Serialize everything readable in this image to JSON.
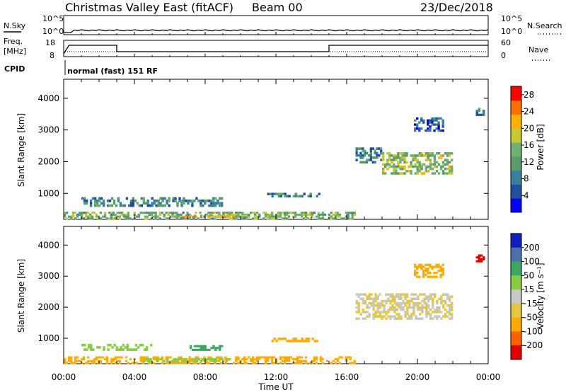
{
  "header": {
    "station": "Christmas Valley East (fitACF)",
    "beam": "Beam 00",
    "date": "23/Dec/2018"
  },
  "summary": {
    "nsky_label": "N.Sky",
    "nsky_ticks": [
      "10^5",
      "10^0"
    ],
    "nsearch_label": "N.Search",
    "nsearch_ticks": [
      "10^5",
      "10^0"
    ],
    "freq_label_line1": "Freq.",
    "freq_label_line2": "[MHz]",
    "freq_ticks": [
      "18",
      "8"
    ],
    "nave_label": "Nave",
    "nave_ticks": [
      "60",
      "0"
    ],
    "cpid_label": "CPID",
    "cpid_text": "normal (fast) 151 RF"
  },
  "axes": {
    "ylabel": "Slant Range [km]",
    "xlabel": "Time UT",
    "y_ticks": [
      "1000",
      "2000",
      "3000",
      "4000"
    ],
    "x_ticks": [
      "00:00",
      "04:00",
      "08:00",
      "12:00",
      "16:00",
      "20:00",
      "00:00"
    ]
  },
  "colorbars": {
    "power_label": "Power [dB]",
    "power_ticks": [
      "4",
      "8",
      "12",
      "16",
      "20",
      "24",
      "28"
    ],
    "velocity_label": "Velocity [m s⁻¹]",
    "velocity_ticks": [
      "200",
      "100",
      "50",
      "15",
      "-15",
      "-50",
      "-100",
      "-200"
    ]
  },
  "chart_data": [
    {
      "type": "heatmap",
      "title": "",
      "xlabel": "",
      "ylabel": "Slant Range [km]",
      "xlim": [
        0,
        24
      ],
      "ylim": [
        180,
        4600
      ],
      "colorbar": {
        "label": "Power [dB]",
        "range": [
          0,
          30
        ],
        "ticks": [
          4,
          8,
          12,
          16,
          20,
          24,
          28
        ]
      },
      "regions": [
        {
          "t": [
            0,
            16.5
          ],
          "range": [
            180,
            420
          ],
          "value": 14
        },
        {
          "t": [
            6.5,
            10.5
          ],
          "range": [
            230,
            330
          ],
          "value": 21
        },
        {
          "t": [
            1,
            9
          ],
          "range": [
            580,
            880
          ],
          "value": 9
        },
        {
          "t": [
            11.5,
            14.5
          ],
          "range": [
            880,
            1020
          ],
          "value": 10
        },
        {
          "t": [
            16.5,
            18
          ],
          "range": [
            1950,
            2450
          ],
          "value": 9
        },
        {
          "t": [
            18,
            22
          ],
          "range": [
            1600,
            2300
          ],
          "value": 16
        },
        {
          "t": [
            19.8,
            21.5
          ],
          "range": [
            2950,
            3400
          ],
          "value": 6
        },
        {
          "t": [
            23.3,
            23.8
          ],
          "range": [
            3450,
            3700
          ],
          "value": 7
        }
      ]
    },
    {
      "type": "heatmap",
      "title": "",
      "xlabel": "Time UT",
      "ylabel": "Slant Range [km]",
      "xlim": [
        0,
        24
      ],
      "ylim": [
        180,
        4600
      ],
      "colorbar": {
        "label": "Velocity [m s⁻¹]",
        "range": [
          -250,
          250
        ],
        "ticks": [
          200,
          100,
          50,
          15,
          -15,
          -50,
          -100,
          -200
        ]
      },
      "regions": [
        {
          "t": [
            0,
            16.5
          ],
          "range": [
            180,
            420
          ],
          "value": -30
        },
        {
          "t": [
            4.5,
            9.5
          ],
          "range": [
            230,
            360
          ],
          "value": 30
        },
        {
          "t": [
            1,
            5
          ],
          "range": [
            600,
            820
          ],
          "value": 35
        },
        {
          "t": [
            7,
            9
          ],
          "range": [
            600,
            780
          ],
          "value": 70
        },
        {
          "t": [
            11.5,
            14.5
          ],
          "range": [
            880,
            1020
          ],
          "value": -30
        },
        {
          "t": [
            16.5,
            22
          ],
          "range": [
            1600,
            2450
          ],
          "value": 0
        },
        {
          "t": [
            19.8,
            21.5
          ],
          "range": [
            2950,
            3400
          ],
          "value": -20
        },
        {
          "t": [
            23.3,
            23.8
          ],
          "range": [
            3450,
            3700
          ],
          "value": -220
        }
      ]
    }
  ]
}
